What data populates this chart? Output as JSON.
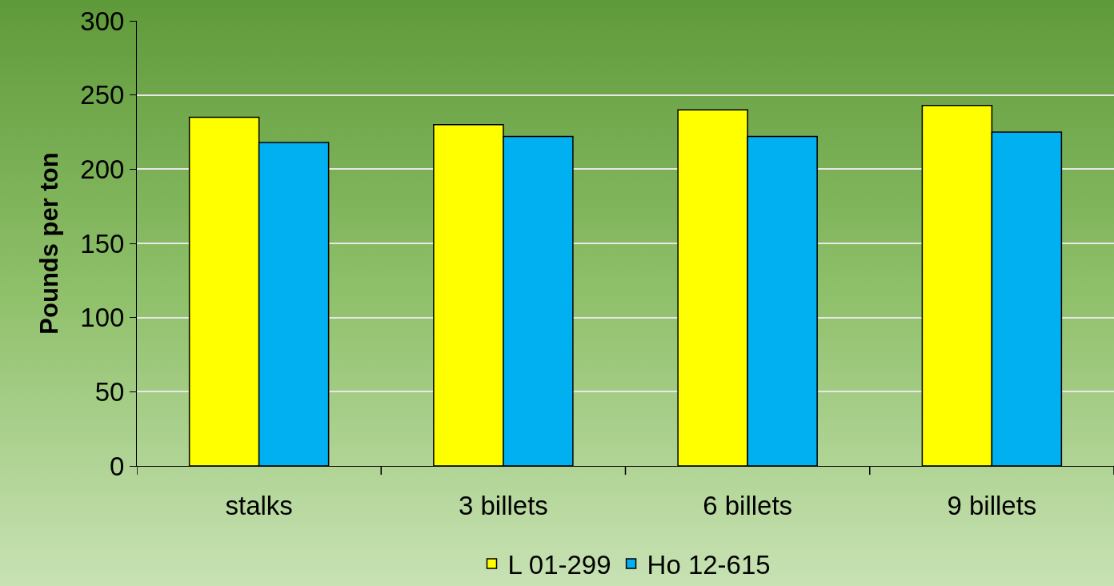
{
  "chart_data": {
    "type": "bar",
    "ylabel": "Pounds per ton",
    "categories": [
      "stalks",
      "3 billets",
      "6 billets",
      "9 billets"
    ],
    "series": [
      {
        "name": "L 01-299",
        "color": "#ffff00",
        "values": [
          235,
          230,
          240,
          243
        ]
      },
      {
        "name": "Ho 12-615",
        "color": "#00b0f0",
        "values": [
          218,
          222,
          222,
          225
        ]
      }
    ],
    "ylim": [
      0,
      300
    ],
    "yticks": [
      0,
      50,
      100,
      150,
      200,
      250,
      300
    ],
    "grid": "y",
    "legend": "bottom"
  }
}
